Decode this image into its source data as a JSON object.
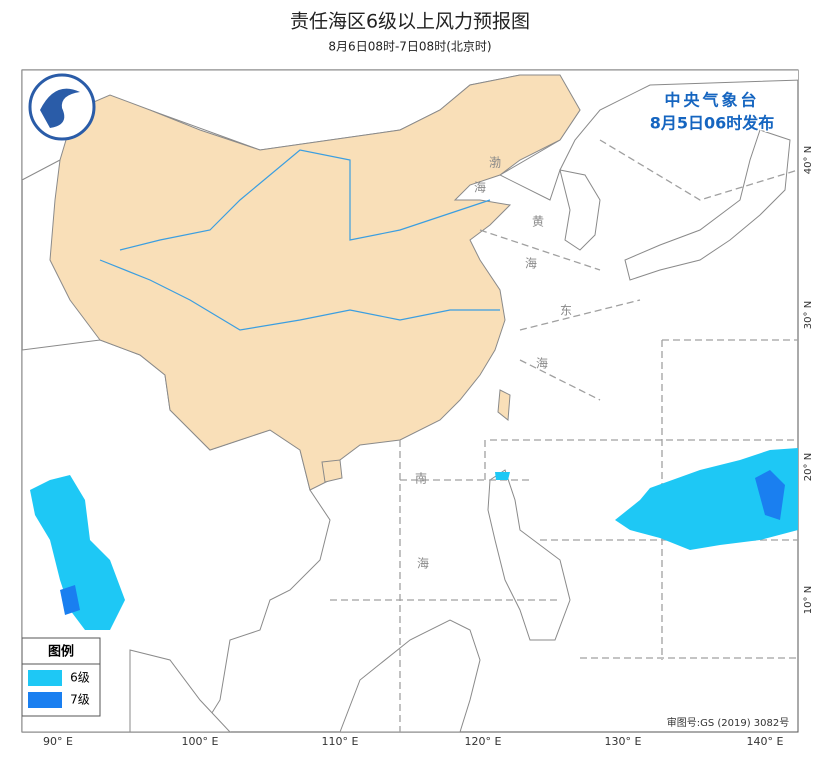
{
  "header": {
    "title": "责任海区6级以上风力预报图",
    "subtitle": "8月6日08时-7日08时(北京时)"
  },
  "issuer": {
    "name": "中央气象台",
    "time": "8月5日06时发布"
  },
  "sea_labels": [
    "渤",
    "海",
    "黄",
    "海",
    "东",
    "海",
    "南",
    "海"
  ],
  "longitude_labels": [
    "90° E",
    "100° E",
    "110° E",
    "120° E",
    "130° E",
    "140° E"
  ],
  "latitude_labels": [
    "40° N",
    "30° N",
    "20° N",
    "10° N"
  ],
  "legend": {
    "title": "图例",
    "items": [
      {
        "label": "6级",
        "color": "#1ec8f5"
      },
      {
        "label": "7级",
        "color": "#1a7ff0"
      }
    ]
  },
  "approval": "审图号:GS (2019) 3082号"
}
